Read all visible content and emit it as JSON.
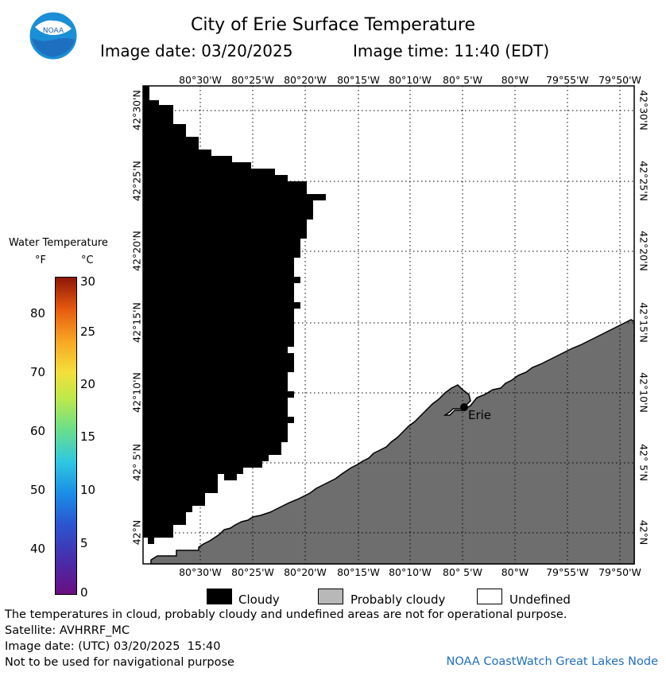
{
  "header": {
    "title": "City of Erie Surface Temperature",
    "image_date": "Image date: 03/20/2025",
    "image_time": "Image time: 11:40 (EDT)"
  },
  "logo": {
    "text": "NOAA",
    "icon": "noaa-logo"
  },
  "map": {
    "lon_labels": [
      "80°30'W",
      "80°25'W",
      "80°20'W",
      "80°15'W",
      "80°10'W",
      "80° 5'W",
      "80°W",
      "79°55'W",
      "79°50'W"
    ],
    "top_lon_labels": [
      "80°30'W",
      "80°25'W",
      "80°20'W",
      "80°15'W",
      "80°10'W",
      "‘80° 5'W",
      "80°W",
      "79°55'W",
      "79°50'W"
    ],
    "lat_labels": [
      "42°30'N",
      "42°25'N",
      "42°20'N",
      "42°15'N",
      "42°10'N",
      "42° 5'N",
      "42°N"
    ],
    "city": "Erie",
    "colors": {
      "cloudy": "#000000",
      "land": "#6e6e6e",
      "water": "#ffffff",
      "grid": "#000000"
    }
  },
  "colorbar": {
    "title": "Water Temperature",
    "unit_f": "°F",
    "unit_c": "°C",
    "f_ticks": [
      "80",
      "70",
      "60",
      "50",
      "40"
    ],
    "c_ticks": [
      "30",
      "25",
      "20",
      "15",
      "10",
      "5",
      "0"
    ],
    "colors": [
      "#6a0f80",
      "#3a3ab8",
      "#1a6fe0",
      "#26b7e6",
      "#5fd68a",
      "#a9e050",
      "#f2e640",
      "#f7a020",
      "#e35a10",
      "#9a1a08"
    ]
  },
  "legend": {
    "cloudy": "Cloudy",
    "probably_cloudy": "Probably cloudy",
    "undefined": "Undefined",
    "colors": {
      "cloudy": "#000000",
      "probably_cloudy": "#b8b8b8",
      "undefined": "#ffffff"
    }
  },
  "footer": {
    "line1": "The temperatures in cloud, probably cloudy and undefined areas are not for operational purpose.",
    "line2": "Satellite: AVHRRF_MC",
    "line3": "Image date: (UTC) 03/20/2025  15:40",
    "line4": "Not to be used for navigational purpose",
    "credit": "NOAA CoastWatch Great Lakes Node"
  }
}
